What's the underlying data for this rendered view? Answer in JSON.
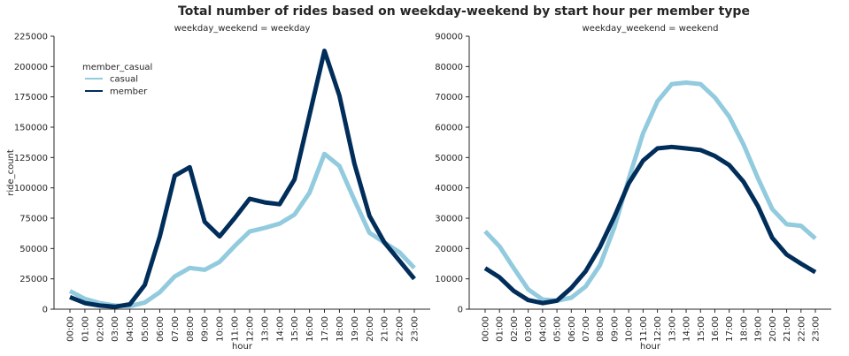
{
  "suptitle": "Total number of rides based on weekday-weekend by start hour per member type",
  "colors": {
    "casual": "#92CADE",
    "member": "#002D5A",
    "axis": "#262626"
  },
  "chart_data": [
    {
      "type": "line",
      "title": "weekday_weekend = weekday",
      "xlabel": "hour",
      "ylabel": "ride_count",
      "ylim": [
        0,
        225000
      ],
      "yticks": [
        0,
        25000,
        50000,
        75000,
        100000,
        125000,
        150000,
        175000,
        200000,
        225000
      ],
      "grid": false,
      "legend": {
        "title": "member_casual",
        "position": "upper-left",
        "entries": [
          "casual",
          "member"
        ]
      },
      "categories": [
        "00:00",
        "01:00",
        "02:00",
        "03:00",
        "04:00",
        "05:00",
        "06:00",
        "07:00",
        "08:00",
        "09:00",
        "10:00",
        "11:00",
        "12:00",
        "13:00",
        "14:00",
        "15:00",
        "16:00",
        "17:00",
        "18:00",
        "19:00",
        "20:00",
        "21:00",
        "22:00",
        "23:00"
      ],
      "series": [
        {
          "name": "casual",
          "values": [
            15000,
            8500,
            5000,
            3000,
            2500,
            5500,
            14000,
            27000,
            34000,
            32500,
            39000,
            52000,
            64000,
            67000,
            70500,
            78000,
            96000,
            128000,
            118000,
            90000,
            63000,
            55000,
            47000,
            34000
          ]
        },
        {
          "name": "member",
          "values": [
            10000,
            5000,
            3000,
            2000,
            4000,
            20000,
            60000,
            110000,
            117000,
            72000,
            60000,
            75000,
            91000,
            88000,
            86500,
            107000,
            160000,
            213000,
            176000,
            120000,
            77000,
            55000,
            40000,
            25000
          ]
        }
      ]
    },
    {
      "type": "line",
      "title": "weekday_weekend = weekend",
      "xlabel": "hour",
      "ylabel": "",
      "ylim": [
        0,
        90000
      ],
      "yticks": [
        0,
        10000,
        20000,
        30000,
        40000,
        50000,
        60000,
        70000,
        80000,
        90000
      ],
      "grid": false,
      "categories": [
        "00:00",
        "01:00",
        "02:00",
        "03:00",
        "04:00",
        "05:00",
        "06:00",
        "07:00",
        "08:00",
        "09:00",
        "10:00",
        "11:00",
        "12:00",
        "13:00",
        "14:00",
        "15:00",
        "16:00",
        "17:00",
        "18:00",
        "19:00",
        "20:00",
        "21:00",
        "22:00",
        "23:00"
      ],
      "series": [
        {
          "name": "casual",
          "values": [
            25700,
            20700,
            13500,
            6500,
            3200,
            2800,
            3800,
            7500,
            14500,
            27000,
            43000,
            58000,
            68500,
            74200,
            74700,
            74200,
            69800,
            63500,
            54300,
            43200,
            33000,
            28000,
            27500,
            23300
          ]
        },
        {
          "name": "member",
          "values": [
            13500,
            10500,
            6000,
            3000,
            2000,
            2800,
            7000,
            12500,
            20500,
            30500,
            41500,
            49000,
            53000,
            53500,
            53000,
            52500,
            50500,
            47500,
            42000,
            34000,
            23500,
            18000,
            15000,
            12200
          ]
        }
      ]
    }
  ]
}
